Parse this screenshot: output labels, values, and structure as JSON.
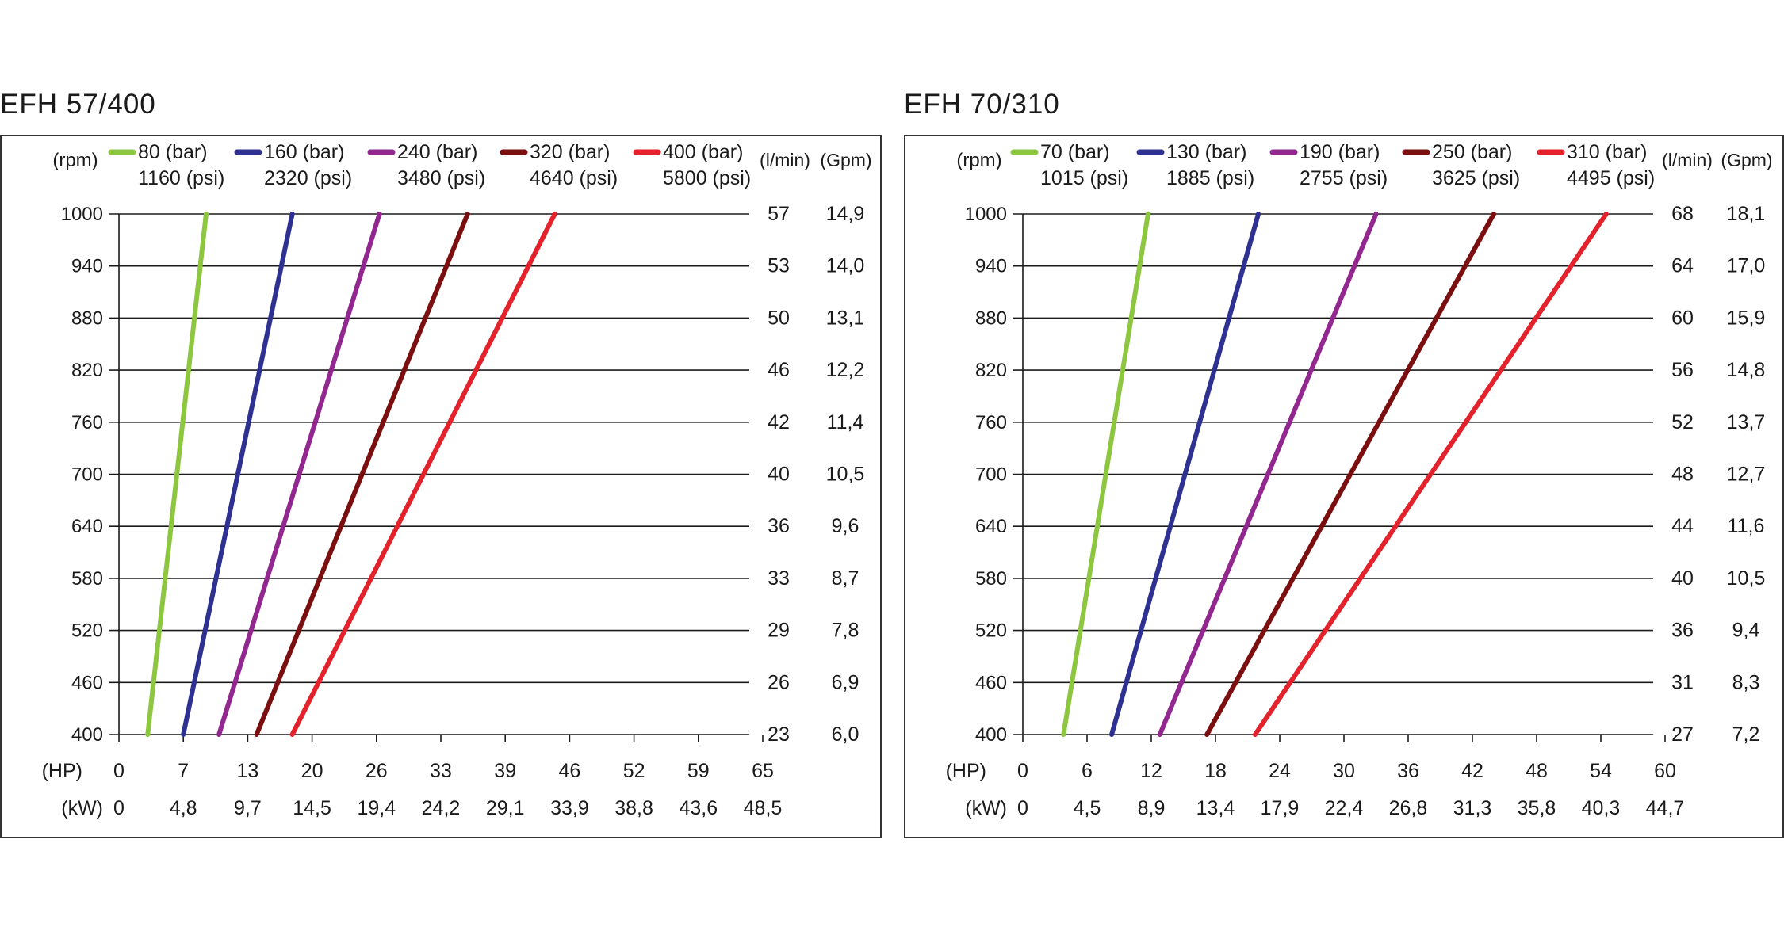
{
  "chart_data": [
    {
      "type": "line",
      "title": "EFH 57/400",
      "y_unit_label": "(rpm)",
      "y_ticks": [
        "1000",
        "940",
        "880",
        "820",
        "760",
        "700",
        "640",
        "580",
        "520",
        "460",
        "400"
      ],
      "ylim": [
        400,
        1000
      ],
      "flow_lpm_header": "(l/min)",
      "flow_lpm": [
        "57",
        "53",
        "50",
        "46",
        "42",
        "40",
        "36",
        "33",
        "29",
        "26",
        "23"
      ],
      "flow_gpm_header": "(Gpm)",
      "flow_gpm": [
        "14,9",
        "14,0",
        "13,1",
        "12,2",
        "11,4",
        "10,5",
        "9,6",
        "8,7",
        "7,8",
        "6,9",
        "6,0"
      ],
      "hp_label": "(HP)",
      "hp_ticks": [
        "0",
        "7",
        "13",
        "20",
        "26",
        "33",
        "39",
        "46",
        "52",
        "59",
        "65"
      ],
      "kw_label": "(kW)",
      "kw_ticks": [
        "0",
        "4,8",
        "9,7",
        "14,5",
        "19,4",
        "24,2",
        "29,1",
        "33,9",
        "38,8",
        "43,6",
        "48,5"
      ],
      "xlim": [
        0,
        65
      ],
      "series": [
        {
          "name": "80 (bar)",
          "subname": "1160 (psi)",
          "color": "#8dc63f",
          "x": [
            2.9,
            8.8
          ],
          "y": [
            400,
            1000
          ]
        },
        {
          "name": "160 (bar)",
          "subname": "2320 (psi)",
          "color": "#2e3192",
          "x": [
            6.5,
            17.5
          ],
          "y": [
            400,
            1000
          ]
        },
        {
          "name": "240 (bar)",
          "subname": "3480 (psi)",
          "color": "#92278f",
          "x": [
            10.1,
            26.3
          ],
          "y": [
            400,
            1000
          ]
        },
        {
          "name": "320 (bar)",
          "subname": "4640 (psi)",
          "color": "#7b0f0f",
          "x": [
            13.9,
            35.2
          ],
          "y": [
            400,
            1000
          ]
        },
        {
          "name": "400 (bar)",
          "subname": "5800 (psi)",
          "color": "#e3222b",
          "x": [
            17.5,
            44.0
          ],
          "y": [
            400,
            1000
          ]
        }
      ]
    },
    {
      "type": "line",
      "title": "EFH 70/310",
      "y_unit_label": "(rpm)",
      "y_ticks": [
        "1000",
        "940",
        "880",
        "820",
        "760",
        "700",
        "640",
        "580",
        "520",
        "460",
        "400"
      ],
      "ylim": [
        400,
        1000
      ],
      "flow_lpm_header": "(l/min)",
      "flow_lpm": [
        "68",
        "64",
        "60",
        "56",
        "52",
        "48",
        "44",
        "40",
        "36",
        "31",
        "27"
      ],
      "flow_gpm_header": "(Gpm)",
      "flow_gpm": [
        "18,1",
        "17,0",
        "15,9",
        "14,8",
        "13,7",
        "12,7",
        "11,6",
        "10,5",
        "9,4",
        "8,3",
        "7,2"
      ],
      "hp_label": "(HP)",
      "hp_ticks": [
        "0",
        "6",
        "12",
        "18",
        "24",
        "30",
        "36",
        "42",
        "48",
        "54",
        "60"
      ],
      "kw_label": "(kW)",
      "kw_ticks": [
        "0",
        "4,5",
        "8,9",
        "13,4",
        "17,9",
        "22,4",
        "26,8",
        "31,3",
        "35,8",
        "40,3",
        "44,7"
      ],
      "xlim": [
        0,
        60
      ],
      "series": [
        {
          "name": "70 (bar)",
          "subname": "1015 (psi)",
          "color": "#8dc63f",
          "x": [
            3.8,
            11.7
          ],
          "y": [
            400,
            1000
          ]
        },
        {
          "name": "130 (bar)",
          "subname": "1885 (psi)",
          "color": "#2e3192",
          "x": [
            8.3,
            22.0
          ],
          "y": [
            400,
            1000
          ]
        },
        {
          "name": "190 (bar)",
          "subname": "2755 (psi)",
          "color": "#92278f",
          "x": [
            12.8,
            33.0
          ],
          "y": [
            400,
            1000
          ]
        },
        {
          "name": "250 (bar)",
          "subname": "3625 (psi)",
          "color": "#7b0f0f",
          "x": [
            17.2,
            44.0
          ],
          "y": [
            400,
            1000
          ]
        },
        {
          "name": "310 (bar)",
          "subname": "4495 (psi)",
          "color": "#e3222b",
          "x": [
            21.7,
            54.5
          ],
          "y": [
            400,
            1000
          ]
        }
      ]
    }
  ]
}
